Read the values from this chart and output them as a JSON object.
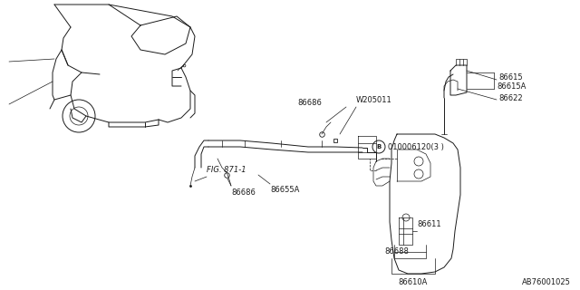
{
  "bg_color": "#ffffff",
  "line_color": "#1a1a1a",
  "diagram_ref": "AB76001025",
  "fig_ref": "FIG. 871-1",
  "circle_b_text": "B",
  "bolt_label": "010006120(3 )",
  "parts_labels": {
    "86686_top": "86686",
    "W205011": "W205011",
    "86686_bot": "86686",
    "86655A": "86655A",
    "86611": "86611",
    "86688": "86688",
    "86610A": "86610A",
    "86615": "86615",
    "86615A": "86615A",
    "86622": "86622"
  }
}
